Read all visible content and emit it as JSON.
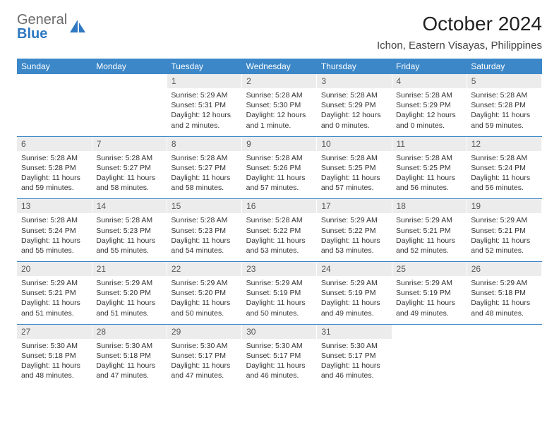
{
  "brand": {
    "top": "General",
    "bottom": "Blue"
  },
  "title": "October 2024",
  "location": "Ichon, Eastern Visayas, Philippines",
  "colors": {
    "header_bg": "#3b87c8",
    "header_text": "#ffffff",
    "daynum_bg": "#ececec",
    "daynum_text": "#555555",
    "body_bg": "#ffffff",
    "divider": "#3b87c8",
    "logo_gray": "#6b6b6b",
    "logo_blue": "#2f79c2"
  },
  "daysOfWeek": [
    "Sunday",
    "Monday",
    "Tuesday",
    "Wednesday",
    "Thursday",
    "Friday",
    "Saturday"
  ],
  "weeks": [
    {
      "nums": [
        "",
        "",
        "1",
        "2",
        "3",
        "4",
        "5"
      ],
      "cells": [
        "",
        "",
        "Sunrise: 5:29 AM\nSunset: 5:31 PM\nDaylight: 12 hours and 2 minutes.",
        "Sunrise: 5:28 AM\nSunset: 5:30 PM\nDaylight: 12 hours and 1 minute.",
        "Sunrise: 5:28 AM\nSunset: 5:29 PM\nDaylight: 12 hours and 0 minutes.",
        "Sunrise: 5:28 AM\nSunset: 5:29 PM\nDaylight: 12 hours and 0 minutes.",
        "Sunrise: 5:28 AM\nSunset: 5:28 PM\nDaylight: 11 hours and 59 minutes."
      ]
    },
    {
      "nums": [
        "6",
        "7",
        "8",
        "9",
        "10",
        "11",
        "12"
      ],
      "cells": [
        "Sunrise: 5:28 AM\nSunset: 5:28 PM\nDaylight: 11 hours and 59 minutes.",
        "Sunrise: 5:28 AM\nSunset: 5:27 PM\nDaylight: 11 hours and 58 minutes.",
        "Sunrise: 5:28 AM\nSunset: 5:27 PM\nDaylight: 11 hours and 58 minutes.",
        "Sunrise: 5:28 AM\nSunset: 5:26 PM\nDaylight: 11 hours and 57 minutes.",
        "Sunrise: 5:28 AM\nSunset: 5:25 PM\nDaylight: 11 hours and 57 minutes.",
        "Sunrise: 5:28 AM\nSunset: 5:25 PM\nDaylight: 11 hours and 56 minutes.",
        "Sunrise: 5:28 AM\nSunset: 5:24 PM\nDaylight: 11 hours and 56 minutes."
      ]
    },
    {
      "nums": [
        "13",
        "14",
        "15",
        "16",
        "17",
        "18",
        "19"
      ],
      "cells": [
        "Sunrise: 5:28 AM\nSunset: 5:24 PM\nDaylight: 11 hours and 55 minutes.",
        "Sunrise: 5:28 AM\nSunset: 5:23 PM\nDaylight: 11 hours and 55 minutes.",
        "Sunrise: 5:28 AM\nSunset: 5:23 PM\nDaylight: 11 hours and 54 minutes.",
        "Sunrise: 5:28 AM\nSunset: 5:22 PM\nDaylight: 11 hours and 53 minutes.",
        "Sunrise: 5:29 AM\nSunset: 5:22 PM\nDaylight: 11 hours and 53 minutes.",
        "Sunrise: 5:29 AM\nSunset: 5:21 PM\nDaylight: 11 hours and 52 minutes.",
        "Sunrise: 5:29 AM\nSunset: 5:21 PM\nDaylight: 11 hours and 52 minutes."
      ]
    },
    {
      "nums": [
        "20",
        "21",
        "22",
        "23",
        "24",
        "25",
        "26"
      ],
      "cells": [
        "Sunrise: 5:29 AM\nSunset: 5:21 PM\nDaylight: 11 hours and 51 minutes.",
        "Sunrise: 5:29 AM\nSunset: 5:20 PM\nDaylight: 11 hours and 51 minutes.",
        "Sunrise: 5:29 AM\nSunset: 5:20 PM\nDaylight: 11 hours and 50 minutes.",
        "Sunrise: 5:29 AM\nSunset: 5:19 PM\nDaylight: 11 hours and 50 minutes.",
        "Sunrise: 5:29 AM\nSunset: 5:19 PM\nDaylight: 11 hours and 49 minutes.",
        "Sunrise: 5:29 AM\nSunset: 5:19 PM\nDaylight: 11 hours and 49 minutes.",
        "Sunrise: 5:29 AM\nSunset: 5:18 PM\nDaylight: 11 hours and 48 minutes."
      ]
    },
    {
      "nums": [
        "27",
        "28",
        "29",
        "30",
        "31",
        "",
        ""
      ],
      "cells": [
        "Sunrise: 5:30 AM\nSunset: 5:18 PM\nDaylight: 11 hours and 48 minutes.",
        "Sunrise: 5:30 AM\nSunset: 5:18 PM\nDaylight: 11 hours and 47 minutes.",
        "Sunrise: 5:30 AM\nSunset: 5:17 PM\nDaylight: 11 hours and 47 minutes.",
        "Sunrise: 5:30 AM\nSunset: 5:17 PM\nDaylight: 11 hours and 46 minutes.",
        "Sunrise: 5:30 AM\nSunset: 5:17 PM\nDaylight: 11 hours and 46 minutes.",
        "",
        ""
      ]
    }
  ]
}
